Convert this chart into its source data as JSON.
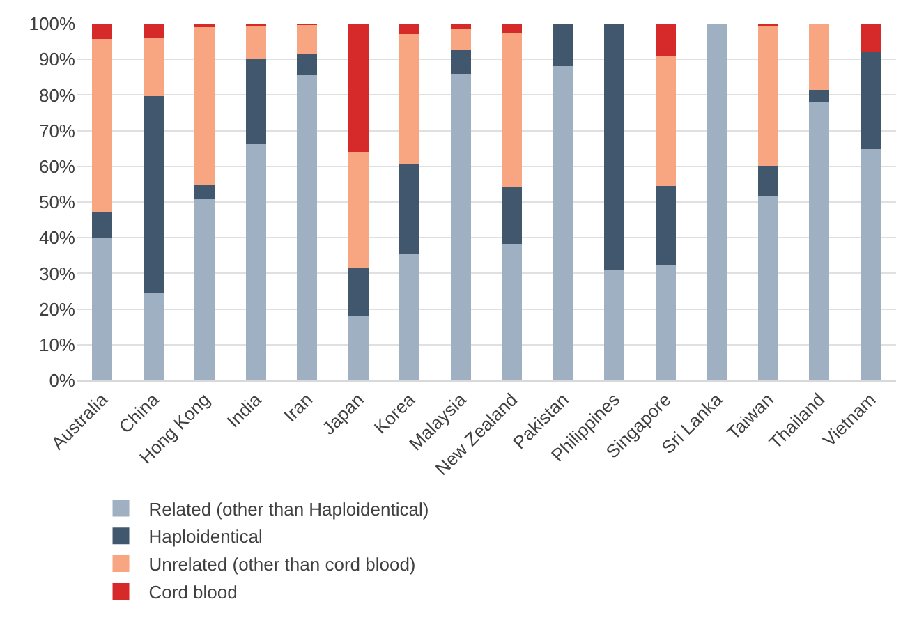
{
  "chart_data": {
    "type": "bar",
    "stacked": true,
    "categories": [
      "Australia",
      "China",
      "Hong Kong",
      "India",
      "Iran",
      "Japan",
      "Korea",
      "Malaysia",
      "New Zealand",
      "Pakistan",
      "Philippines",
      "Singapore",
      "Sri Lanka",
      "Taiwan",
      "Thailand",
      "Vietnam"
    ],
    "series": [
      {
        "name": "Related (other than Haploidentical)",
        "color": "#9fb0c2",
        "values": [
          40,
          24.7,
          51,
          66.5,
          85.8,
          18,
          35.5,
          86,
          38.3,
          88,
          30.8,
          32.3,
          100,
          51.7,
          77.9,
          64.8
        ]
      },
      {
        "name": "Haploidentical",
        "color": "#41576d",
        "values": [
          7,
          55,
          3.7,
          23.7,
          5.7,
          13.5,
          25.3,
          6.5,
          15.9,
          12,
          69.2,
          22.1,
          0,
          8.5,
          3.6,
          27.1
        ]
      },
      {
        "name": "Unrelated (other than cord blood)",
        "color": "#f8a582",
        "values": [
          48.7,
          16.3,
          44.3,
          9.3,
          8.2,
          32.5,
          36.2,
          6.2,
          43,
          0,
          0,
          36.5,
          0,
          39.3,
          18.5,
          0
        ]
      },
      {
        "name": "Cord blood",
        "color": "#d62a2a",
        "values": [
          4.3,
          4,
          1,
          0.5,
          0.3,
          36,
          3,
          1.3,
          2.8,
          0,
          0,
          9.1,
          0,
          0.5,
          0,
          8.1
        ]
      }
    ],
    "ylim": [
      0,
      100
    ],
    "yticks": [
      {
        "value": 0,
        "label": "0%"
      },
      {
        "value": 10,
        "label": "10%"
      },
      {
        "value": 20,
        "label": "20%"
      },
      {
        "value": 30,
        "label": "30%"
      },
      {
        "value": 40,
        "label": "40%"
      },
      {
        "value": 50,
        "label": "50%"
      },
      {
        "value": 60,
        "label": "60%"
      },
      {
        "value": 70,
        "label": "70%"
      },
      {
        "value": 80,
        "label": "80%"
      },
      {
        "value": 90,
        "label": "90%"
      },
      {
        "value": 100,
        "label": "100%"
      }
    ],
    "grid": "y",
    "legend": "bottom"
  }
}
